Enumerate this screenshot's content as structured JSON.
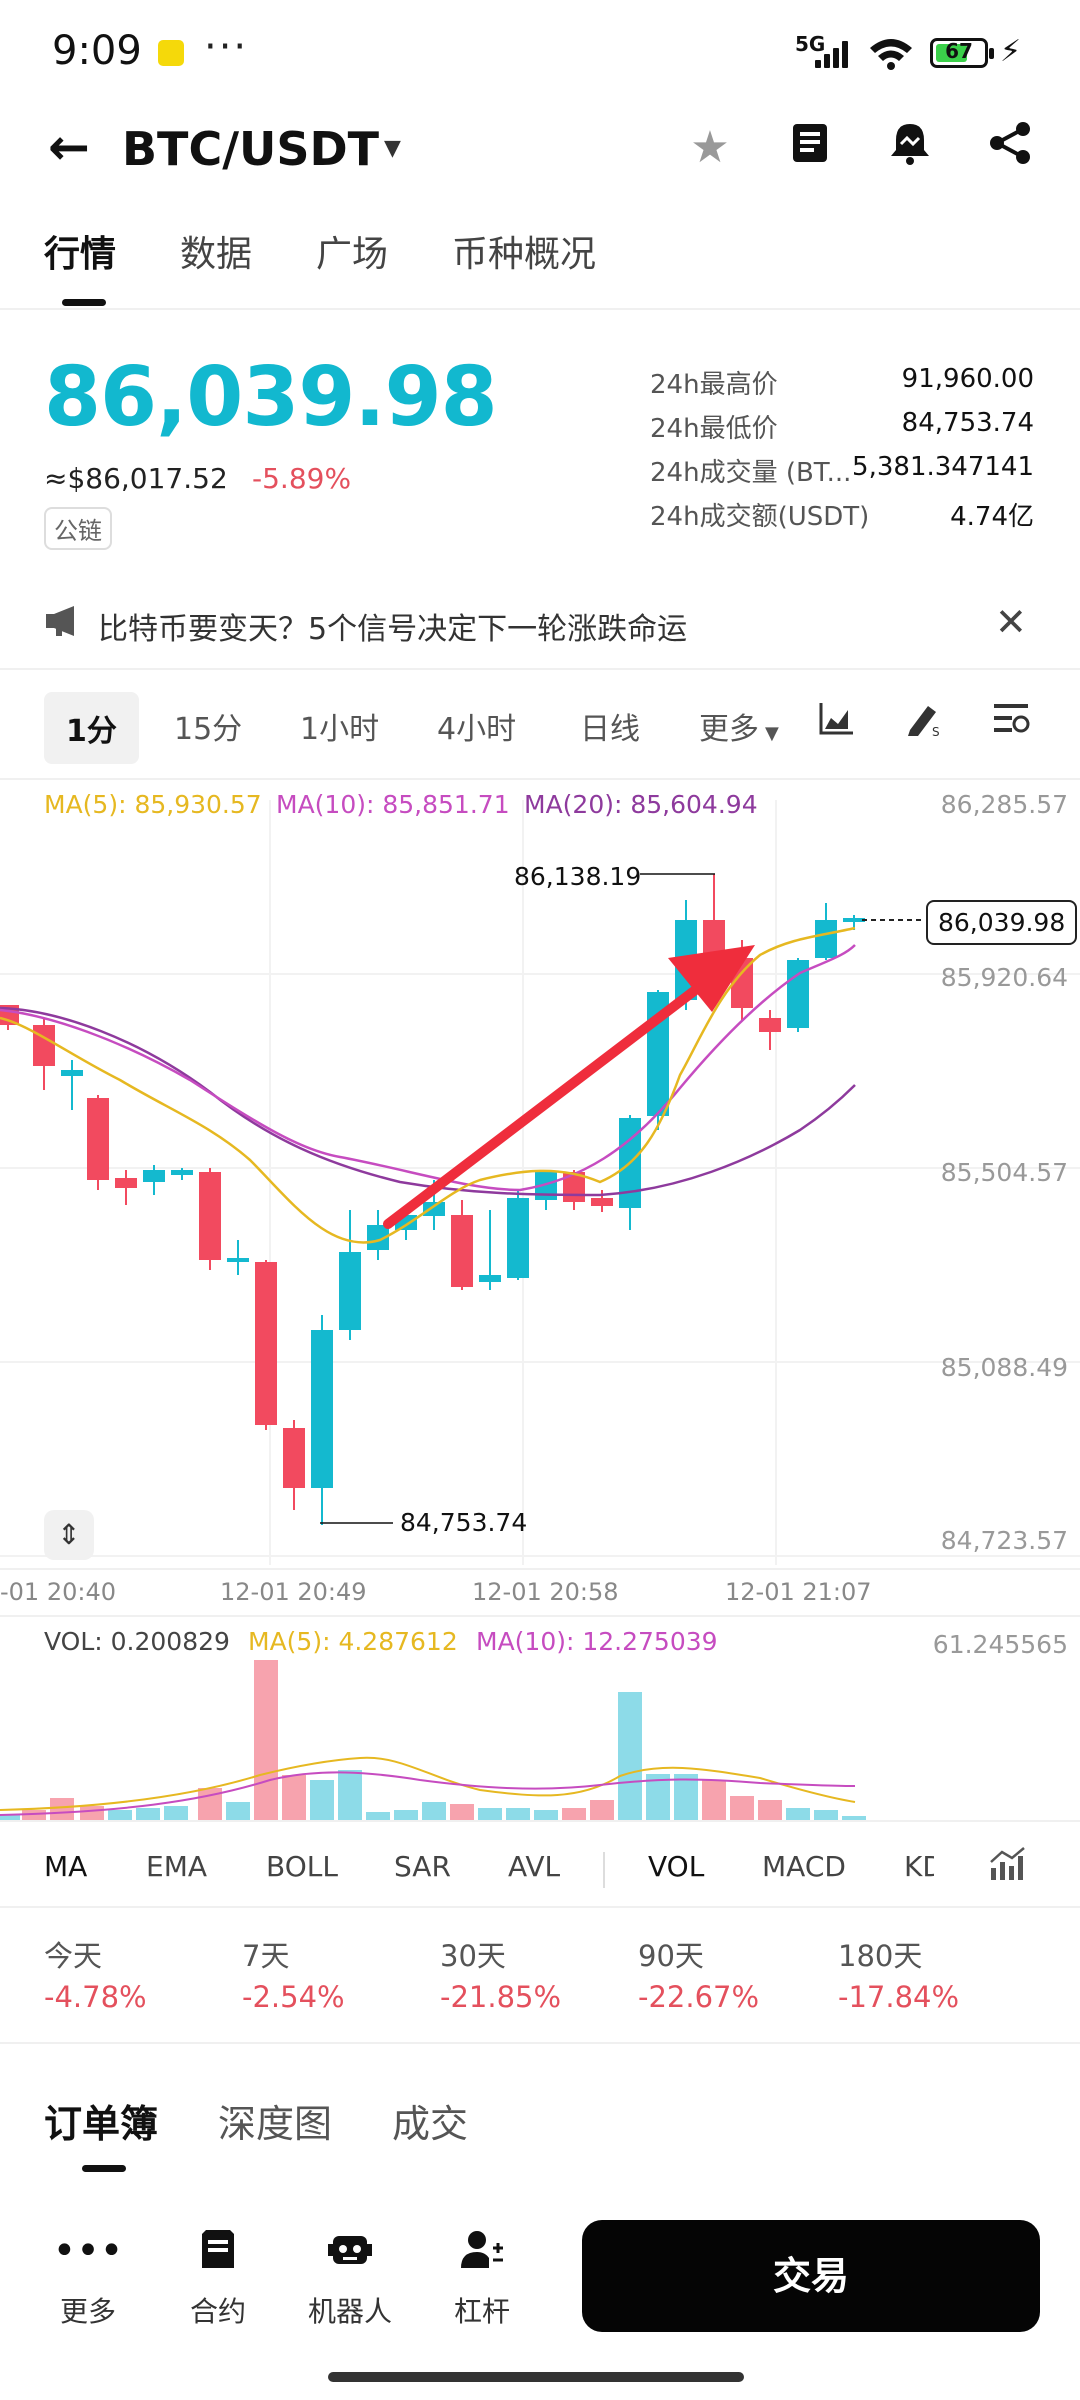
{
  "status_bar": {
    "time": "9:09",
    "dots": "···",
    "network": "5G",
    "battery": "67",
    "icons": [
      "notification-icon",
      "signal-icon",
      "wifi-icon",
      "battery-icon",
      "charging-icon"
    ]
  },
  "header": {
    "pair": "BTC/USDT",
    "icons": [
      "back-arrow-icon",
      "caret-down-icon",
      "star-icon",
      "book-icon",
      "bell-icon",
      "share-icon"
    ]
  },
  "tabs": [
    "行情",
    "数据",
    "广场",
    "币种概况"
  ],
  "price": {
    "last": "86,039.98",
    "usd": "≈$86,017.52",
    "change": "-5.89%",
    "chain_badge": "公链",
    "color_up": "#12b8cf",
    "color_down": "#e4505d"
  },
  "stats": [
    {
      "label": "24h最高价",
      "value": "91,960.00"
    },
    {
      "label": "24h最低价",
      "value": "84,753.74"
    },
    {
      "label": "24h成交量 (BT...",
      "value": "5,381.347141"
    },
    {
      "label": "24h成交额(USDT)",
      "value": "4.74亿"
    }
  ],
  "announcement": {
    "text": "比特币要变天？5个信号决定下一轮涨跌命运",
    "icons": [
      "megaphone-icon",
      "close-icon"
    ]
  },
  "timeframes": {
    "items": [
      "1分",
      "15分",
      "1小时",
      "4小时",
      "日线",
      "更多"
    ],
    "active": "1分",
    "icons": [
      "area-chart-icon",
      "draw-tool-icon",
      "chart-settings-icon"
    ]
  },
  "chart": {
    "ma5": "MA(5): 85,930.57",
    "ma10": "MA(10): 85,851.71",
    "ma20": "MA(20): 85,604.94",
    "y_labels": [
      "86,285.57",
      "85,920.64",
      "85,504.57",
      "85,088.49",
      "84,723.57"
    ],
    "last_price_tag": "86,039.98",
    "high_marker": "86,138.19",
    "low_marker": "84,753.74",
    "time_labels": [
      "-01 20:40",
      "12-01 20:49",
      "12-01 20:58",
      "12-01 21:07"
    ],
    "colors": {
      "up": "#14b9cf",
      "down": "#f24a5f",
      "ma5": "#e6b821",
      "ma10": "#c64cc0",
      "ma20": "#8e3a9d",
      "arrow": "#ef2d3c"
    }
  },
  "volume": {
    "vol": "VOL: 0.200829",
    "ma5": "MA(5): 4.287612",
    "ma10": "MA(10): 12.275039",
    "max_label": "61.245565"
  },
  "indicators": {
    "items": [
      "MA",
      "EMA",
      "BOLL",
      "SAR",
      "AVL",
      "VOL",
      "MACD",
      "KD"
    ],
    "icon": "indicator-settings-icon"
  },
  "periods": [
    {
      "label": "今天",
      "value": "-4.78%"
    },
    {
      "label": "7天",
      "value": "-2.54%"
    },
    {
      "label": "30天",
      "value": "-21.85%"
    },
    {
      "label": "90天",
      "value": "-22.67%"
    },
    {
      "label": "180天",
      "value": "-17.84%"
    }
  ],
  "order_tabs": [
    "订单簿",
    "深度图",
    "成交"
  ],
  "bottom_nav": [
    {
      "label": "更多",
      "icon": "more-icon"
    },
    {
      "label": "合约",
      "icon": "contract-icon"
    },
    {
      "label": "机器人",
      "icon": "robot-icon"
    },
    {
      "label": "杠杆",
      "icon": "leverage-icon"
    }
  ],
  "trade_button": "交易"
}
